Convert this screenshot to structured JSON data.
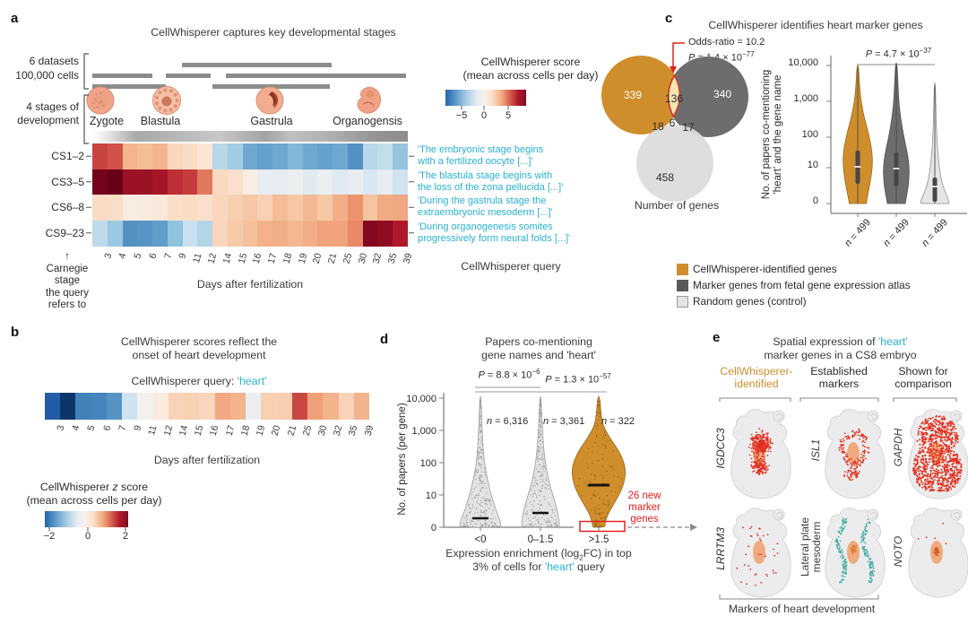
{
  "colors": {
    "accent_cyan": "#29b1d4",
    "gold": "#cf8e2b",
    "dark_gray": "#595959",
    "light_gray": "#e4e4e4",
    "red": "#e0231f",
    "teal": "#47ada4",
    "dot_red": "#e2311f",
    "dot_orange": "#e08134",
    "blob_orange": "#efa878"
  },
  "panel_a": {
    "label": "a",
    "title": "CellWhisperer captures key developmental stages",
    "datasets_line1": "6 datasets",
    "datasets_line2": "100,000 cells",
    "stages_line1": "4 stages of",
    "stages_line2": "development",
    "stages": [
      "Zygote",
      "Blastula",
      "Gastrula",
      "Organogensis"
    ],
    "dataset_bars": [
      {
        "y": 70,
        "segs": [
          [
            203,
            370
          ]
        ]
      },
      {
        "y": 82,
        "segs": [
          [
            103,
            170
          ],
          [
            185,
            235
          ],
          [
            252,
            453
          ]
        ]
      },
      {
        "y": 94,
        "segs": [
          [
            103,
            185
          ],
          [
            237,
            368
          ]
        ]
      }
    ],
    "row_labels": [
      "CS1–2",
      "CS3–5",
      "CS6–8",
      "CS9–23"
    ],
    "carnegie_note": [
      "↑",
      "Carnegie",
      "stage",
      "the query",
      "refers to"
    ],
    "xlabel": "Days after fertilization",
    "colorbar_title1": "CellWhisperer score",
    "colorbar_title2": "(mean across cells per day)",
    "colorbar_ticks": [
      "−5",
      "0",
      "5"
    ],
    "quotes": [
      {
        "l1": "'The embryonic stage begins",
        "l2": "with a fertilized oocyte [...]'"
      },
      {
        "l1": "'The blastula stage begins with",
        "l2": "the loss of the zona pellucida [...]'"
      },
      {
        "l1": "'During the gastrula stage the",
        "l2": "extraembryonic mesoderm [...]'"
      },
      {
        "l1": "'During organogenesis somites",
        "l2": "progressively form neural folds [...]'"
      }
    ],
    "query_label": "CellWhisperer query"
  },
  "panel_b": {
    "label": "b",
    "title1": "CellWhisperer scores reflect the",
    "title2": "onset of heart development",
    "query_prefix": "CellWhisperer query: ",
    "query_term": "'heart'",
    "xlabel": "Days after fertilization",
    "cb_t1a": "CellWhisperer ",
    "cb_t1b": "z",
    "cb_t1c": " score",
    "cb_t2": "(mean across cells per day)",
    "colorbar_ticks": [
      "−2",
      "0",
      "2"
    ]
  },
  "panel_c": {
    "label": "c",
    "title": "CellWhisperer identifies heart marker genes",
    "odds": "Odds-ratio = 10.2",
    "p_pre": "P",
    "p_mid": " = 1.4 × 10",
    "p_exp": "−77",
    "venn_caption": "Number of genes",
    "violin_p_pre": "P",
    "violin_p_mid": " = 4.7 × 10",
    "violin_p_exp": "−37",
    "ylab1": "No. of papers co-mentioning",
    "ylab2": "'heart' and the gene name",
    "n_pre": "n",
    "n_val": " = 499",
    "legend": [
      {
        "label": "CellWhisperer-identified genes"
      },
      {
        "label": "Marker genes from fetal gene expression atlas"
      },
      {
        "label": "Random genes (control)"
      }
    ]
  },
  "panel_d": {
    "label": "d",
    "title1": "Papers co-mentioning",
    "title2": "gene names and 'heart'",
    "p1_pre": "P",
    "p1_mid": " = 8.8 × 10",
    "p1_exp": "−6",
    "p2_pre": "P",
    "p2_mid": " = 1.3 × 10",
    "p2_exp": "−57",
    "ylabel": "No. of papers (per gene)",
    "n1_pre": "n",
    "n1_val": " = 6,316",
    "n2_pre": "n",
    "n2_val": " = 3,361",
    "n3_pre": "n",
    "n3_val": " = 322",
    "xlabel1_pre": "Expression enrichment (log",
    "xlabel1_sub": "2",
    "xlabel1_post": "FC) in top",
    "xlabel2_pre": "3% of cells for ",
    "xlabel2_term": "'heart'",
    "xlabel2_post": " query",
    "ann1": "26 new",
    "ann2": "marker",
    "ann3": "genes"
  },
  "panel_e": {
    "label": "e",
    "title1_pre": "Spatial expression of ",
    "title1_term": "'heart'",
    "title2": "marker genes in a CS8 embryo",
    "col1_l1": "CellWhisperer-",
    "col1_l2": "identified",
    "col2_l1": "Established",
    "col2_l2": "markers",
    "col3_l1": "Shown for",
    "col3_l2": "comparison",
    "gene_r1c1": "IGDCC3",
    "gene_r1c2": "ISL1",
    "gene_r1c3": "GAPDH",
    "gene_r2c1": "LRRTM3",
    "gene_r2c2_l1": "Lateral plate",
    "gene_r2c2_l2": "mesoderm",
    "gene_r2c3": "NOTO",
    "bottom_label": "Markers of heart development"
  },
  "chart_data": [
    {
      "id": "a_heatmap",
      "type": "heatmap",
      "title": "CellWhisperer captures key developmental stages",
      "columns": [
        "3",
        "4",
        "5",
        "6",
        "7",
        "9",
        "11",
        "12",
        "14",
        "15",
        "16",
        "17",
        "18",
        "19",
        "20",
        "21",
        "25",
        "30",
        "32",
        "35",
        "39"
      ],
      "rows": [
        "CS1–2",
        "CS3–5",
        "CS6–8",
        "CS9–23"
      ],
      "values": [
        [
          4.6,
          4.4,
          2.4,
          2.2,
          2.4,
          1.3,
          1.1,
          0.7,
          -1.3,
          -1.7,
          -2.7,
          -2.9,
          -2.7,
          -2.3,
          -2.7,
          -2.9,
          -2.7,
          -3.3,
          -1.3,
          -1.1,
          -1.9
        ],
        [
          6.3,
          6.5,
          5.6,
          5.6,
          5.4,
          4.9,
          4.7,
          3.8,
          1.2,
          0.9,
          0.3,
          -0.4,
          -0.4,
          -0.25,
          -0.55,
          -0.3,
          -0.6,
          -0.35,
          -0.7,
          -0.4,
          -0.9
        ],
        [
          1.1,
          1.0,
          0.35,
          0.4,
          0.55,
          1.0,
          1.1,
          0.9,
          1.3,
          1.6,
          1.9,
          1.5,
          2.2,
          1.9,
          2.3,
          1.85,
          2.6,
          3.3,
          2.0,
          2.7,
          2.75
        ],
        [
          -1.2,
          -1.8,
          -3.3,
          -3.2,
          -3.0,
          -2.0,
          -1.0,
          -1.4,
          1.3,
          1.75,
          2.1,
          2.5,
          2.6,
          2.35,
          2.6,
          2.9,
          2.9,
          3.5,
          6.0,
          5.8,
          5.2
        ]
      ],
      "value_label": "CellWhisperer score (mean across cells per day)",
      "colorbar_ticks": [
        -5,
        0,
        5
      ],
      "xlabel": "Days after fertilization"
    },
    {
      "id": "b_heatmap",
      "type": "heatmap",
      "title": "CellWhisperer scores reflect the onset of heart development",
      "query": "heart",
      "columns": [
        "3",
        "4",
        "5",
        "6",
        "7",
        "9",
        "11",
        "12",
        "14",
        "15",
        "16",
        "17",
        "18",
        "19",
        "20",
        "21",
        "25",
        "30",
        "32",
        "35",
        "39"
      ],
      "values": [
        [
          -1.9,
          -2.45,
          -1.45,
          -1.4,
          -1.25,
          -0.35,
          -0.05,
          0.15,
          0.55,
          0.6,
          0.5,
          1.05,
          0.95,
          -0.12,
          0.6,
          0.62,
          1.75,
          1.15,
          0.95,
          0.55,
          0.95
        ]
      ],
      "value_label": "CellWhisperer z score (mean across cells per day)",
      "colorbar_ticks": [
        -2,
        0,
        2
      ],
      "xlabel": "Days after fertilization"
    },
    {
      "id": "c_venn",
      "type": "venn",
      "sets": [
        "CellWhisperer-identified genes",
        "Marker genes from fetal gene expression atlas",
        "Random genes (control)"
      ],
      "counts": {
        "cw_only": 339,
        "cw_and_marker": 136,
        "marker_only": 340,
        "cw_and_random": 18,
        "all_three": 6,
        "marker_and_random": 17,
        "random_only": 458
      },
      "odds_ratio": 10.2,
      "p_value": "1.4e-77",
      "caption": "Number of genes"
    },
    {
      "id": "c_violin",
      "type": "violin",
      "yscale": "symlog",
      "ylabel": "No. of papers co-mentioning 'heart' and the gene name",
      "yticks": [
        "10,000",
        "1,000",
        "100",
        "10",
        "0"
      ],
      "groups": [
        {
          "name": "CellWhisperer-identified genes",
          "n": 499,
          "median": 11
        },
        {
          "name": "Marker genes from fetal gene expression atlas",
          "n": 499,
          "median": 10
        },
        {
          "name": "Random genes (control)",
          "n": 499,
          "median": 4
        }
      ],
      "p_value": "4.7e-37"
    },
    {
      "id": "d_violin",
      "type": "violin",
      "yscale": "symlog",
      "title": "Papers co-mentioning gene names and 'heart'",
      "ylabel": "No. of papers (per gene)",
      "xlabel": "Expression enrichment (log2FC) in top 3% of cells for 'heart' query",
      "yticks": [
        "10,000",
        "1,000",
        "100",
        "10",
        "0"
      ],
      "categories": [
        "<0",
        "0–1.5",
        ">1.5"
      ],
      "groups": [
        {
          "n": 6316,
          "median": 3
        },
        {
          "n": 3361,
          "median": 5
        },
        {
          "n": 322,
          "median": 16
        }
      ],
      "p_values": {
        "lt0_vs_mid": "8.8e-6",
        "lt0_vs_gt15": "1.3e-57"
      },
      "annotation": "26 new marker genes"
    },
    {
      "id": "e_spatial",
      "type": "scatter",
      "title": "Spatial expression of 'heart' marker genes in a CS8 embryo",
      "columns": [
        "CellWhisperer-identified",
        "Established markers",
        "Shown for comparison"
      ],
      "genes": [
        [
          "IGDCC3",
          "ISL1",
          "GAPDH"
        ],
        [
          "LRRTM3",
          "Lateral plate mesoderm",
          "NOTO"
        ]
      ],
      "caption": "Markers of heart development"
    }
  ]
}
